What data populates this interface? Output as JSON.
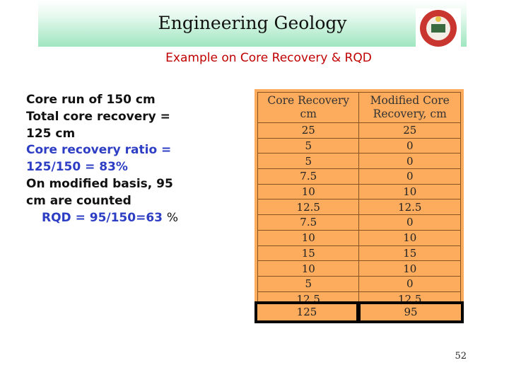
{
  "header": {
    "title": "Engineering Geology"
  },
  "subtitle": "Example on Core Recovery & RQD",
  "content": {
    "line1": "Core run of 150 cm",
    "line2": "Total core recovery =",
    "line3": "125 cm",
    "line4": "Core recovery ratio =",
    "line5": "125/150 = 83%",
    "line6": "On modified basis, 95",
    "line7": "cm are counted",
    "line8_main": "RQD = 95/150=63",
    "line8_pct": "%"
  },
  "table": {
    "headers": [
      [
        "Core Recovery",
        "cm"
      ],
      [
        "Modified Core",
        "Recovery, cm"
      ]
    ],
    "rows": [
      [
        "25",
        "25"
      ],
      [
        "5",
        "0"
      ],
      [
        "5",
        "0"
      ],
      [
        "7.5",
        "0"
      ],
      [
        "10",
        "10"
      ],
      [
        "12.5",
        "12.5"
      ],
      [
        "7.5",
        "0"
      ],
      [
        "10",
        "10"
      ],
      [
        "15",
        "15"
      ],
      [
        "10",
        "10"
      ],
      [
        "5",
        "0"
      ],
      [
        "12.5",
        "12.5"
      ]
    ],
    "total": [
      "125",
      "95"
    ]
  },
  "page_number": "52",
  "colors": {
    "table_bg": "#fdab5c",
    "subtitle": "#c00000",
    "accent_text": "#2e3ec4"
  }
}
